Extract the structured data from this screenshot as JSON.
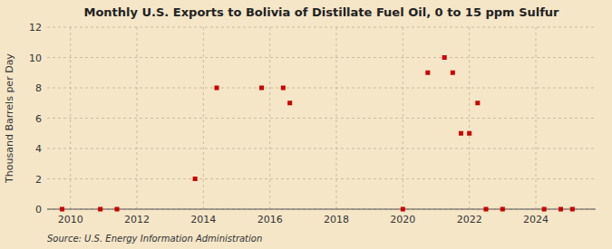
{
  "chart_data": {
    "type": "scatter",
    "title": "Monthly U.S. Exports to Bolivia of Distillate Fuel Oil, 0 to 15 ppm Sulfur",
    "y_label": "Thousand Barrels per Day",
    "source": "Source: U.S. Energy Information Administration",
    "x": [
      2009.75,
      2010.9,
      2011.4,
      2013.75,
      2014.4,
      2015.75,
      2016.4,
      2016.6,
      2020.0,
      2020.75,
      2021.25,
      2021.5,
      2021.75,
      2022.0,
      2022.25,
      2022.5,
      2023.0,
      2024.25,
      2024.75,
      2025.1
    ],
    "values": [
      0,
      0,
      0,
      2,
      8,
      8,
      8,
      7,
      0,
      9,
      10,
      9,
      5,
      5,
      7,
      0,
      0,
      0,
      0,
      0
    ],
    "color": "#cc0000",
    "marker": "square",
    "xlim": [
      2009.3,
      2025.8
    ],
    "xticks": [
      2010,
      2012,
      2014,
      2016,
      2018,
      2020,
      2022,
      2024
    ],
    "ylim": [
      0,
      12
    ],
    "yticks": [
      0,
      2,
      4,
      6,
      8,
      10,
      12
    ],
    "grid": true
  }
}
